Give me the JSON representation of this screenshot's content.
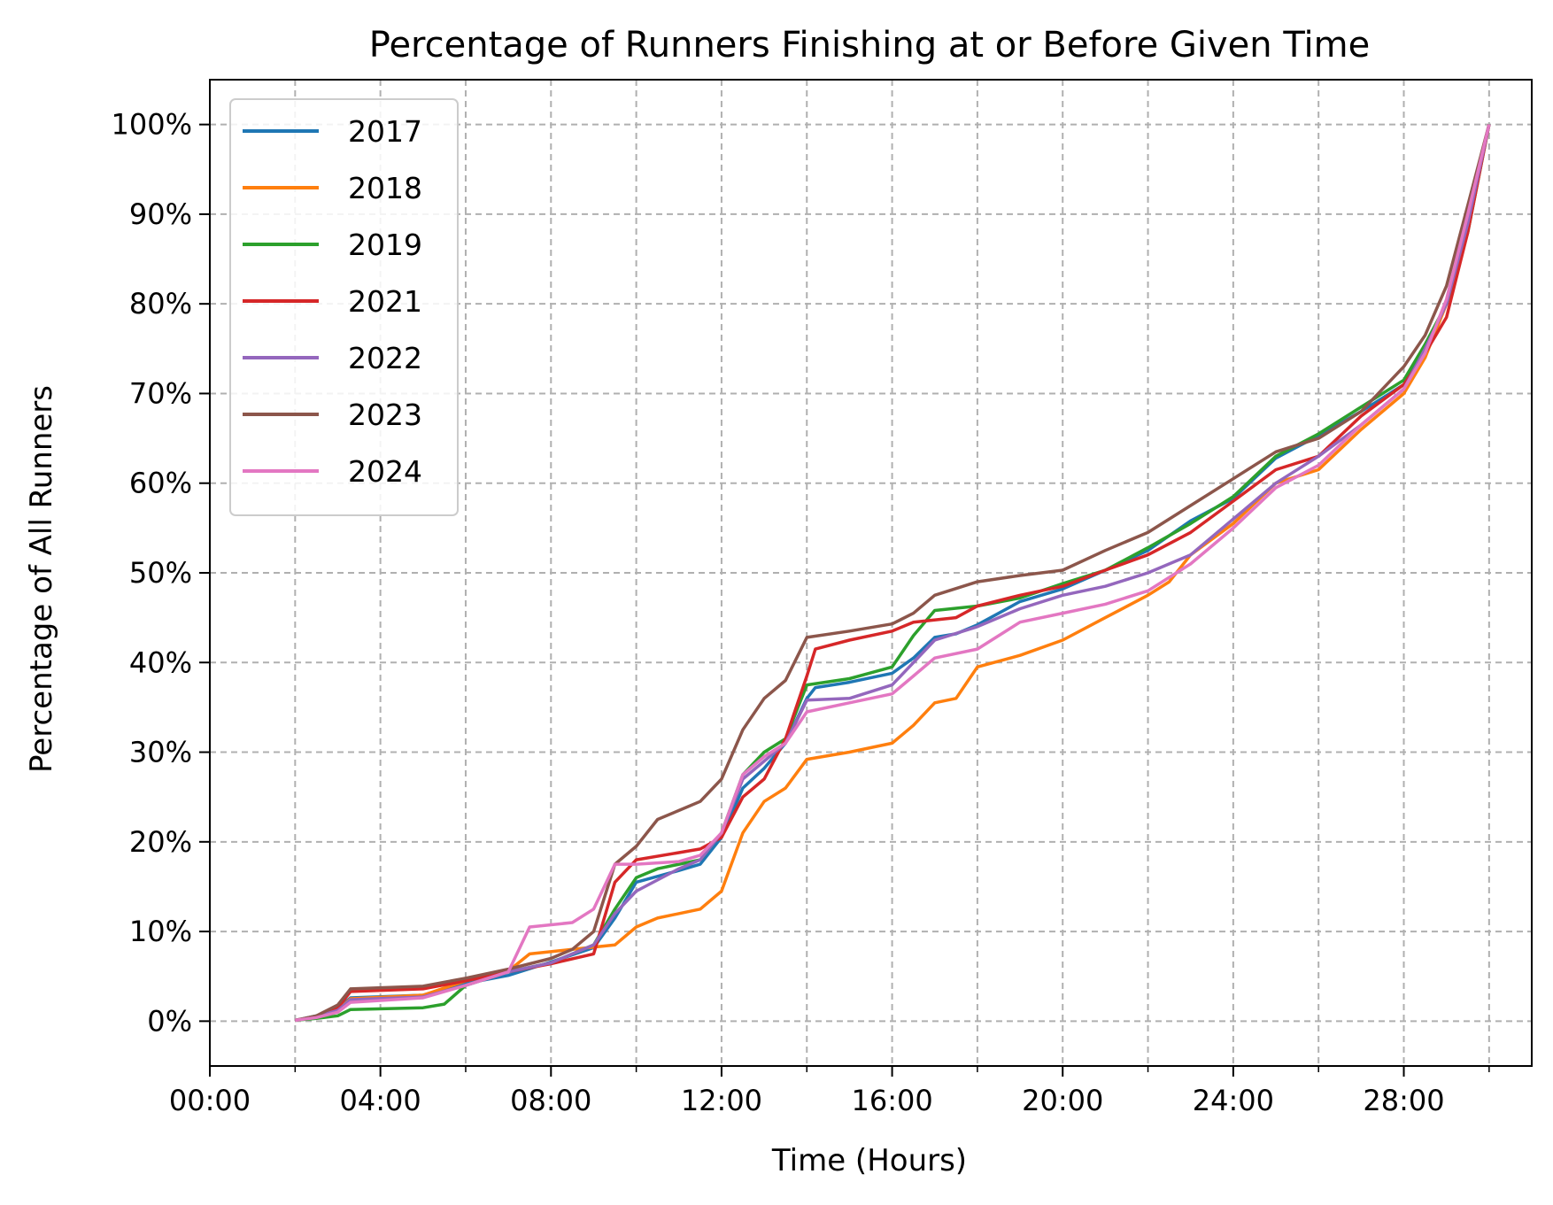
{
  "chart_data": {
    "type": "line",
    "title": "Percentage of Runners Finishing at or Before Given Time",
    "xlabel": "Time (Hours)",
    "ylabel": "Percentage of All Runners",
    "xlim": [
      0,
      31
    ],
    "ylim": [
      -5,
      105
    ],
    "x_ticks": [
      0,
      4,
      8,
      12,
      16,
      20,
      24,
      28
    ],
    "x_tick_labels": [
      "00:00",
      "04:00",
      "08:00",
      "12:00",
      "16:00",
      "20:00",
      "24:00",
      "28:00"
    ],
    "x_minor_ticks": [
      2,
      6,
      10,
      14,
      18,
      22,
      26,
      30
    ],
    "y_ticks": [
      0,
      10,
      20,
      30,
      40,
      50,
      60,
      70,
      80,
      90,
      100
    ],
    "y_tick_labels": [
      "0%",
      "10%",
      "20%",
      "30%",
      "40%",
      "50%",
      "60%",
      "70%",
      "80%",
      "90%",
      "100%"
    ],
    "grid": true,
    "legend_position": "top-left",
    "series": [
      {
        "name": "2017",
        "color": "#1f77b4",
        "points": [
          [
            2.0,
            0.1
          ],
          [
            2.5,
            0.6
          ],
          [
            3.0,
            1.4
          ],
          [
            3.3,
            2.6
          ],
          [
            5.0,
            2.9
          ],
          [
            6.0,
            4.2
          ],
          [
            7.0,
            5.1
          ],
          [
            8.0,
            6.6
          ],
          [
            9.0,
            8.2
          ],
          [
            9.5,
            11.5
          ],
          [
            10.0,
            15.5
          ],
          [
            11.0,
            16.8
          ],
          [
            11.5,
            17.5
          ],
          [
            12.0,
            20.5
          ],
          [
            12.5,
            26.0
          ],
          [
            13.0,
            28.2
          ],
          [
            13.5,
            31.0
          ],
          [
            14.0,
            36.0
          ],
          [
            14.2,
            37.2
          ],
          [
            15.0,
            37.8
          ],
          [
            16.0,
            38.8
          ],
          [
            16.5,
            40.5
          ],
          [
            17.0,
            42.8
          ],
          [
            17.5,
            43.2
          ],
          [
            18.0,
            44.2
          ],
          [
            19.0,
            46.8
          ],
          [
            20.0,
            48.2
          ],
          [
            21.0,
            50.3
          ],
          [
            22.0,
            52.5
          ],
          [
            23.0,
            55.8
          ],
          [
            24.0,
            58.3
          ],
          [
            25.0,
            62.8
          ],
          [
            26.0,
            65.3
          ],
          [
            27.0,
            68.0
          ],
          [
            28.0,
            71.0
          ],
          [
            28.5,
            75.0
          ],
          [
            29.0,
            80.0
          ],
          [
            29.5,
            90.0
          ],
          [
            30.0,
            100.0
          ]
        ]
      },
      {
        "name": "2018",
        "color": "#ff7f0e",
        "points": [
          [
            2.0,
            0.1
          ],
          [
            2.5,
            0.5
          ],
          [
            3.0,
            1.2
          ],
          [
            3.3,
            2.5
          ],
          [
            5.0,
            2.9
          ],
          [
            6.0,
            4.5
          ],
          [
            7.0,
            5.6
          ],
          [
            7.5,
            7.5
          ],
          [
            8.5,
            8.0
          ],
          [
            9.5,
            8.5
          ],
          [
            10.0,
            10.5
          ],
          [
            10.5,
            11.5
          ],
          [
            11.5,
            12.5
          ],
          [
            12.0,
            14.5
          ],
          [
            12.5,
            21.0
          ],
          [
            13.0,
            24.5
          ],
          [
            13.5,
            26.0
          ],
          [
            14.0,
            29.2
          ],
          [
            15.0,
            30.0
          ],
          [
            16.0,
            31.0
          ],
          [
            16.5,
            33.0
          ],
          [
            17.0,
            35.5
          ],
          [
            17.5,
            36.0
          ],
          [
            18.0,
            39.5
          ],
          [
            19.0,
            40.8
          ],
          [
            20.0,
            42.5
          ],
          [
            21.0,
            45.0
          ],
          [
            22.0,
            47.5
          ],
          [
            22.5,
            49.0
          ],
          [
            23.0,
            52.0
          ],
          [
            24.0,
            55.5
          ],
          [
            25.0,
            60.0
          ],
          [
            26.0,
            61.5
          ],
          [
            27.0,
            66.0
          ],
          [
            28.0,
            70.0
          ],
          [
            28.5,
            74.0
          ],
          [
            29.0,
            80.0
          ],
          [
            29.5,
            89.0
          ],
          [
            30.0,
            100.0
          ]
        ]
      },
      {
        "name": "2019",
        "color": "#2ca02c",
        "points": [
          [
            2.0,
            0.1
          ],
          [
            2.5,
            0.3
          ],
          [
            3.0,
            0.6
          ],
          [
            3.3,
            1.3
          ],
          [
            5.0,
            1.5
          ],
          [
            5.5,
            1.9
          ],
          [
            6.0,
            4.0
          ],
          [
            7.0,
            5.5
          ],
          [
            8.0,
            6.5
          ],
          [
            9.0,
            8.5
          ],
          [
            9.5,
            12.5
          ],
          [
            10.0,
            16.0
          ],
          [
            10.5,
            17.0
          ],
          [
            11.5,
            18.0
          ],
          [
            12.0,
            21.0
          ],
          [
            12.5,
            27.5
          ],
          [
            13.0,
            30.0
          ],
          [
            13.5,
            31.5
          ],
          [
            14.0,
            37.5
          ],
          [
            15.0,
            38.2
          ],
          [
            16.0,
            39.5
          ],
          [
            16.5,
            43.0
          ],
          [
            17.0,
            45.8
          ],
          [
            18.0,
            46.3
          ],
          [
            19.0,
            47.2
          ],
          [
            20.0,
            48.8
          ],
          [
            21.0,
            50.3
          ],
          [
            22.0,
            52.8
          ],
          [
            23.0,
            55.5
          ],
          [
            24.0,
            58.5
          ],
          [
            25.0,
            63.0
          ],
          [
            26.0,
            65.5
          ],
          [
            27.0,
            68.5
          ],
          [
            28.0,
            71.5
          ],
          [
            28.5,
            75.5
          ],
          [
            29.0,
            80.0
          ],
          [
            29.5,
            88.0
          ],
          [
            30.0,
            100.0
          ]
        ]
      },
      {
        "name": "2021",
        "color": "#d62728",
        "points": [
          [
            2.0,
            0.1
          ],
          [
            2.5,
            0.5
          ],
          [
            3.0,
            1.5
          ],
          [
            3.3,
            3.3
          ],
          [
            5.0,
            3.6
          ],
          [
            6.0,
            4.5
          ],
          [
            7.0,
            5.5
          ],
          [
            8.0,
            6.4
          ],
          [
            9.0,
            7.5
          ],
          [
            9.5,
            15.5
          ],
          [
            10.0,
            18.0
          ],
          [
            11.0,
            18.8
          ],
          [
            11.5,
            19.2
          ],
          [
            12.0,
            20.5
          ],
          [
            12.5,
            25.0
          ],
          [
            13.0,
            27.0
          ],
          [
            13.5,
            31.5
          ],
          [
            14.0,
            38.5
          ],
          [
            14.2,
            41.5
          ],
          [
            15.0,
            42.5
          ],
          [
            16.0,
            43.5
          ],
          [
            16.5,
            44.5
          ],
          [
            17.5,
            45.0
          ],
          [
            18.0,
            46.3
          ],
          [
            19.0,
            47.5
          ],
          [
            20.0,
            48.5
          ],
          [
            21.0,
            50.3
          ],
          [
            22.0,
            52.0
          ],
          [
            23.0,
            54.5
          ],
          [
            24.0,
            58.0
          ],
          [
            25.0,
            61.5
          ],
          [
            26.0,
            63.0
          ],
          [
            27.0,
            67.5
          ],
          [
            28.0,
            71.0
          ],
          [
            28.5,
            74.5
          ],
          [
            29.0,
            78.5
          ],
          [
            29.5,
            88.0
          ],
          [
            30.0,
            100.0
          ]
        ]
      },
      {
        "name": "2022",
        "color": "#9467bd",
        "points": [
          [
            2.0,
            0.1
          ],
          [
            2.5,
            0.5
          ],
          [
            3.0,
            1.2
          ],
          [
            3.3,
            2.4
          ],
          [
            5.0,
            2.7
          ],
          [
            6.0,
            4.0
          ],
          [
            7.0,
            5.5
          ],
          [
            8.0,
            6.5
          ],
          [
            9.0,
            8.5
          ],
          [
            9.5,
            12.0
          ],
          [
            10.0,
            14.5
          ],
          [
            11.0,
            17.0
          ],
          [
            11.5,
            18.0
          ],
          [
            12.0,
            21.0
          ],
          [
            12.5,
            27.0
          ],
          [
            13.0,
            29.0
          ],
          [
            13.5,
            31.0
          ],
          [
            14.0,
            35.8
          ],
          [
            15.0,
            36.0
          ],
          [
            16.0,
            37.5
          ],
          [
            16.5,
            40.0
          ],
          [
            17.0,
            42.5
          ],
          [
            18.0,
            44.0
          ],
          [
            19.0,
            46.0
          ],
          [
            20.0,
            47.5
          ],
          [
            21.0,
            48.5
          ],
          [
            22.0,
            50.0
          ],
          [
            23.0,
            52.0
          ],
          [
            24.0,
            56.0
          ],
          [
            25.0,
            60.0
          ],
          [
            26.0,
            63.0
          ],
          [
            27.0,
            66.5
          ],
          [
            28.0,
            70.5
          ],
          [
            28.5,
            75.0
          ],
          [
            29.0,
            80.0
          ],
          [
            29.5,
            89.0
          ],
          [
            30.0,
            100.0
          ]
        ]
      },
      {
        "name": "2023",
        "color": "#8c564b",
        "points": [
          [
            2.0,
            0.1
          ],
          [
            2.5,
            0.6
          ],
          [
            3.0,
            1.8
          ],
          [
            3.3,
            3.6
          ],
          [
            5.0,
            3.9
          ],
          [
            6.0,
            4.8
          ],
          [
            7.0,
            5.8
          ],
          [
            8.0,
            7.0
          ],
          [
            8.5,
            8.0
          ],
          [
            9.0,
            10.0
          ],
          [
            9.5,
            17.5
          ],
          [
            10.0,
            19.5
          ],
          [
            10.5,
            22.5
          ],
          [
            11.0,
            23.5
          ],
          [
            11.5,
            24.5
          ],
          [
            12.0,
            27.0
          ],
          [
            12.5,
            32.5
          ],
          [
            13.0,
            36.0
          ],
          [
            13.5,
            38.0
          ],
          [
            14.0,
            42.8
          ],
          [
            15.0,
            43.5
          ],
          [
            16.0,
            44.3
          ],
          [
            16.5,
            45.5
          ],
          [
            17.0,
            47.5
          ],
          [
            18.0,
            49.0
          ],
          [
            19.0,
            49.7
          ],
          [
            20.0,
            50.3
          ],
          [
            21.0,
            52.5
          ],
          [
            22.0,
            54.5
          ],
          [
            23.0,
            57.5
          ],
          [
            24.0,
            60.5
          ],
          [
            25.0,
            63.5
          ],
          [
            26.0,
            65.0
          ],
          [
            27.0,
            68.0
          ],
          [
            28.0,
            73.0
          ],
          [
            28.5,
            76.5
          ],
          [
            29.0,
            82.0
          ],
          [
            29.5,
            91.0
          ],
          [
            30.0,
            100.0
          ]
        ]
      },
      {
        "name": "2024",
        "color": "#e377c2",
        "points": [
          [
            2.0,
            0.1
          ],
          [
            2.5,
            0.4
          ],
          [
            3.0,
            1.0
          ],
          [
            3.3,
            2.1
          ],
          [
            5.0,
            2.6
          ],
          [
            6.0,
            4.0
          ],
          [
            7.0,
            5.5
          ],
          [
            7.5,
            10.5
          ],
          [
            8.5,
            11.0
          ],
          [
            9.0,
            12.5
          ],
          [
            9.5,
            17.5
          ],
          [
            10.0,
            17.5
          ],
          [
            11.0,
            17.8
          ],
          [
            11.5,
            18.5
          ],
          [
            12.0,
            21.0
          ],
          [
            12.5,
            27.5
          ],
          [
            13.0,
            29.5
          ],
          [
            13.5,
            31.0
          ],
          [
            14.0,
            34.5
          ],
          [
            15.0,
            35.5
          ],
          [
            16.0,
            36.5
          ],
          [
            16.5,
            38.5
          ],
          [
            17.0,
            40.5
          ],
          [
            18.0,
            41.5
          ],
          [
            19.0,
            44.5
          ],
          [
            20.0,
            45.5
          ],
          [
            21.0,
            46.5
          ],
          [
            22.0,
            48.0
          ],
          [
            23.0,
            51.0
          ],
          [
            24.0,
            55.0
          ],
          [
            25.0,
            59.5
          ],
          [
            26.0,
            62.0
          ],
          [
            27.0,
            66.5
          ],
          [
            28.0,
            70.5
          ],
          [
            28.5,
            74.5
          ],
          [
            29.0,
            80.5
          ],
          [
            29.5,
            90.0
          ],
          [
            30.0,
            100.0
          ]
        ]
      }
    ]
  }
}
